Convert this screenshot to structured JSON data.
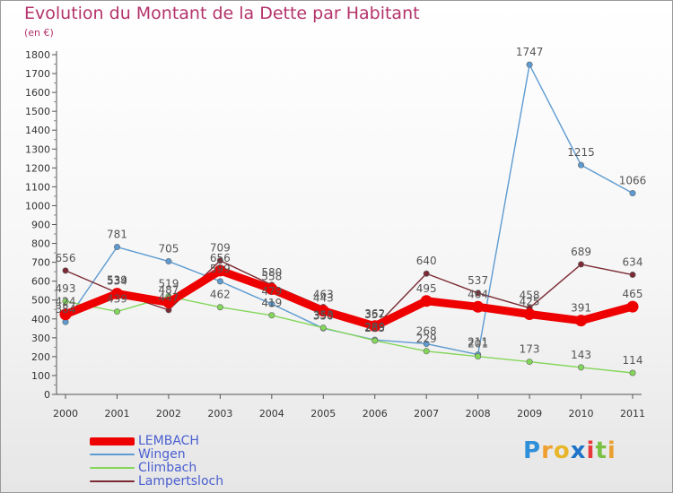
{
  "header": {
    "title": "Evolution du Montant de la Dette par Habitant",
    "unit": "(en €)"
  },
  "chart_data": {
    "type": "line",
    "title": "Evolution du Montant de la Dette par Habitant",
    "subtitle": "(en €)",
    "xlabel": "",
    "ylabel": "",
    "x": [
      "2000",
      "2001",
      "2002",
      "2003",
      "2004",
      "2005",
      "2006",
      "2007",
      "2008",
      "2009",
      "2010",
      "2011"
    ],
    "ylim": [
      0,
      1800
    ],
    "yticks": [
      0,
      100,
      200,
      300,
      400,
      500,
      600,
      700,
      800,
      900,
      1000,
      1100,
      1200,
      1300,
      1400,
      1500,
      1600,
      1700,
      1800
    ],
    "grid": false,
    "legend_position": "bottom-left",
    "series": [
      {
        "name": "Wingen",
        "color": "#5d9bd1",
        "values": [
          384,
          781,
          705,
          599,
          479,
          350,
          289,
          268,
          211,
          1747,
          1215,
          1066
        ]
      },
      {
        "name": "Climbach",
        "color": "#84d65a",
        "values": [
          493,
          439,
          519,
          462,
          419,
          353,
          285,
          229,
          201,
          173,
          143,
          114
        ]
      },
      {
        "name": "Lampertsloch",
        "color": "#7b2a34",
        "values": [
          656,
          539,
          447,
          709,
          580,
          463,
          357,
          640,
          537,
          458,
          689,
          634
        ]
      },
      {
        "name": "LEMBACH",
        "color": "#ee0000",
        "values": [
          424,
          534,
          487,
          656,
          558,
          443,
          362,
          495,
          464,
          425,
          391,
          465
        ]
      }
    ]
  },
  "legend": [
    {
      "name": "LEMBACH",
      "color": "#ee0000"
    },
    {
      "name": "Wingen",
      "color": "#5d9bd1"
    },
    {
      "name": "Climbach",
      "color": "#84d65a"
    },
    {
      "name": "Lampertsloch",
      "color": "#7b2a34"
    }
  ],
  "brand": {
    "letters": [
      "P",
      "r",
      "o",
      "x",
      "i",
      "t",
      "i"
    ],
    "colors": [
      "#2f8fd8",
      "#f0a030",
      "#e8b62a",
      "#1e73c9",
      "#e83a3a",
      "#7ac143",
      "#e8a030"
    ]
  }
}
